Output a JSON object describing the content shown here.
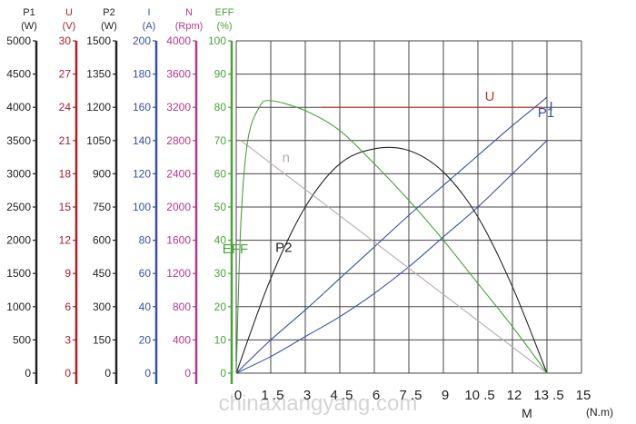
{
  "chart_data": {
    "type": "line",
    "x_ticks": [
      "0",
      "1 .5",
      "3",
      "4 .5",
      "6",
      "7 .5",
      "9",
      "10 .5",
      "12",
      "13 .5",
      "15"
    ],
    "x_unit": "(N.m)",
    "x_label": "M",
    "xlim": [
      0,
      15
    ],
    "grid": true,
    "watermark": "chinaxiangyang.com",
    "axes": [
      {
        "id": "P1",
        "name": "P1",
        "unit": "(W)",
        "color": "#222222",
        "ticks": [
          "5000",
          "4500",
          "4000",
          "3500",
          "3000",
          "2500",
          "2000",
          "1500",
          "1000",
          "500",
          "0"
        ]
      },
      {
        "id": "U",
        "name": "U",
        "unit": "(V)",
        "color": "#a8202c",
        "ticks": [
          "30",
          "27",
          "24",
          "21",
          "18",
          "15",
          "12",
          "9",
          "6",
          "3",
          "0"
        ]
      },
      {
        "id": "P2",
        "name": "P2",
        "unit": "(W)",
        "color": "#222222",
        "ticks": [
          "1500",
          "1350",
          "1200",
          "1050",
          "900",
          "750",
          "600",
          "450",
          "300",
          "150",
          "0"
        ]
      },
      {
        "id": "I",
        "name": "I",
        "unit": "(A)",
        "color": "#3a4f9e",
        "ticks": [
          "200",
          "180",
          "160",
          "140",
          "120",
          "100",
          "80",
          "60",
          "40",
          "20",
          "0"
        ]
      },
      {
        "id": "N",
        "name": "N",
        "unit": "(Rpm)",
        "color": "#b03a8a",
        "ticks": [
          "4000",
          "3600",
          "3200",
          "2800",
          "2400",
          "2000",
          "1600",
          "1200",
          "800",
          "400",
          "0"
        ]
      },
      {
        "id": "EFF",
        "name": "EFF",
        "unit": "(%)",
        "color": "#4aa13a",
        "ticks": [
          "100",
          "90",
          "80",
          "70",
          "60",
          "50",
          "40",
          "30",
          "20",
          "10",
          "0"
        ]
      }
    ],
    "series": [
      {
        "name": "U",
        "color": "#c0392b",
        "label_pos": [
          10.8,
          82
        ],
        "x": [
          3.7,
          13.3
        ],
        "y": [
          80,
          80
        ]
      },
      {
        "name": "P1",
        "color": "#3a4f9e",
        "label_pos": [
          13.1,
          77
        ],
        "x": [
          0,
          1.5,
          3,
          4.5,
          6,
          7.5,
          9,
          10.5,
          12,
          13.5
        ],
        "y": [
          0,
          5,
          11,
          17,
          24,
          32,
          41,
          50,
          60,
          70
        ]
      },
      {
        "name": "I",
        "color": "#3a4f9e",
        "label_pos": [
          13.6,
          79
        ],
        "x": [
          0,
          1.5,
          3,
          4.5,
          6,
          7.5,
          9,
          10.5,
          12,
          13.5
        ],
        "y": [
          0,
          10,
          19,
          28.5,
          38,
          47.5,
          56.5,
          65.5,
          74.5,
          83
        ]
      },
      {
        "name": "P2",
        "color": "#222222",
        "label_pos": [
          1.7,
          36.5
        ],
        "x": [
          0,
          1.5,
          3,
          4.5,
          6,
          7.5,
          9,
          10.5,
          12,
          13.5
        ],
        "y": [
          0,
          28.5,
          50,
          63,
          67.5,
          67,
          60.5,
          47,
          26,
          0
        ]
      },
      {
        "name": "n",
        "color": "#b8a8b4",
        "label_pos": [
          2.0,
          63.5
        ],
        "x": [
          0.2,
          13.5
        ],
        "y": [
          70,
          0
        ]
      },
      {
        "name": "EFF",
        "color": "#4aa13a",
        "label_pos": [
          -0.6,
          36
        ],
        "x": [
          0,
          0.2,
          0.5,
          1,
          1.5,
          3,
          4.5,
          6,
          7.5,
          9,
          10.5,
          12,
          13.5
        ],
        "y": [
          0,
          45,
          70,
          80,
          82,
          79,
          73,
          63,
          52,
          40,
          27,
          14,
          0
        ]
      }
    ]
  }
}
